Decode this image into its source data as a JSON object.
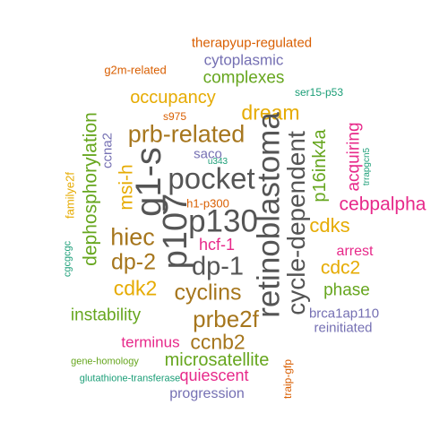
{
  "palette": {
    "orange": "#d95f02",
    "purple": "#7570b3",
    "pink": "#e7298a",
    "green": "#66a61e",
    "gold": "#e6ab02",
    "brown": "#a6761d",
    "gray": "#555555",
    "teal": "#1b9e77"
  },
  "words": [
    {
      "text": "therapyup-regulated",
      "color": "orange"
    },
    {
      "text": "cytoplasmic",
      "color": "purple"
    },
    {
      "text": "g2m-related",
      "color": "orange"
    },
    {
      "text": "complexes",
      "color": "green"
    },
    {
      "text": "ser15-p53",
      "color": "teal"
    },
    {
      "text": "occupancy",
      "color": "gold"
    },
    {
      "text": "dream",
      "color": "gold"
    },
    {
      "text": "dephosphorylation",
      "color": "green"
    },
    {
      "text": "s975",
      "color": "orange"
    },
    {
      "text": "prb-related",
      "color": "brown"
    },
    {
      "text": "acquiring",
      "color": "pink"
    },
    {
      "text": "ccna2",
      "color": "purple"
    },
    {
      "text": "saco",
      "color": "purple"
    },
    {
      "text": "g1-s",
      "color": "gray"
    },
    {
      "text": "p16ink4a",
      "color": "green"
    },
    {
      "text": "trrapgcn5",
      "color": "teal"
    },
    {
      "text": "u343",
      "color": "teal"
    },
    {
      "text": "familye2f",
      "color": "gold"
    },
    {
      "text": "msi-h",
      "color": "gold"
    },
    {
      "text": "pocket",
      "color": "gray"
    },
    {
      "text": "retinoblastoma",
      "color": "gray"
    },
    {
      "text": "cycle-dependent",
      "color": "gray"
    },
    {
      "text": "cebpalpha",
      "color": "pink"
    },
    {
      "text": "h1-p300",
      "color": "orange"
    },
    {
      "text": "p107",
      "color": "gray"
    },
    {
      "text": "p130",
      "color": "gray"
    },
    {
      "text": "cdks",
      "color": "gold"
    },
    {
      "text": "hiec",
      "color": "brown"
    },
    {
      "text": "hcf-1",
      "color": "pink"
    },
    {
      "text": "cgcgcgc",
      "color": "teal"
    },
    {
      "text": "arrest",
      "color": "pink"
    },
    {
      "text": "dp-2",
      "color": "brown"
    },
    {
      "text": "dp-1",
      "color": "gray"
    },
    {
      "text": "cdc2",
      "color": "gold"
    },
    {
      "text": "cdk2",
      "color": "gold"
    },
    {
      "text": "cyclins",
      "color": "brown"
    },
    {
      "text": "phase",
      "color": "green"
    },
    {
      "text": "brca1ap110",
      "color": "purple"
    },
    {
      "text": "instability",
      "color": "green"
    },
    {
      "text": "prbe2f",
      "color": "brown"
    },
    {
      "text": "reinitiated",
      "color": "purple"
    },
    {
      "text": "terminus",
      "color": "pink"
    },
    {
      "text": "ccnb2",
      "color": "brown"
    },
    {
      "text": "microsatellite",
      "color": "green"
    },
    {
      "text": "traip-gfp",
      "color": "orange"
    },
    {
      "text": "gene-homology",
      "color": "green"
    },
    {
      "text": "quiescent",
      "color": "pink"
    },
    {
      "text": "glutathione-transferase",
      "color": "teal"
    },
    {
      "text": "progression",
      "color": "purple"
    }
  ]
}
